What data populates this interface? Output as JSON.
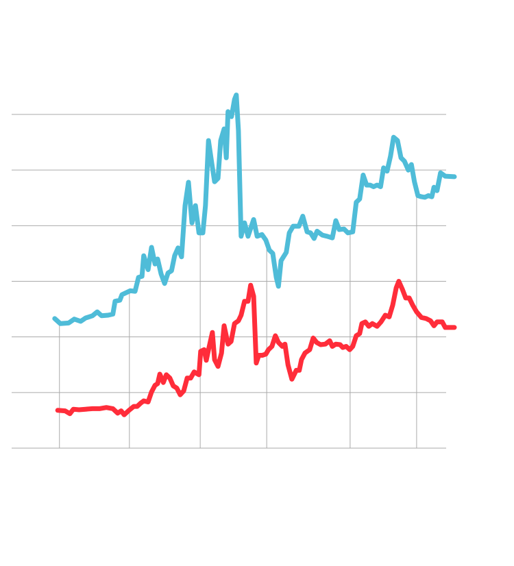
{
  "chart_data": {
    "type": "line",
    "title": "",
    "xlabel": "",
    "ylabel": "",
    "xlim": [
      0,
      100
    ],
    "ylim": [
      0,
      60
    ],
    "y_gridlines": [
      0,
      10,
      20,
      30,
      40,
      50,
      60
    ],
    "x_gridlines": [
      11.0,
      27.1,
      43.4,
      58.7,
      77.9,
      93.2
    ],
    "grid": true,
    "legend": "none",
    "colors": {
      "series_1": "#4fbcd8",
      "series_2": "#ff2d3a",
      "grid": "#aaaaaa"
    },
    "series": [
      {
        "x": [
          9.9,
          11.2,
          13.1,
          14.4,
          15.9,
          17.0,
          18.6,
          19.7,
          20.7,
          22.2,
          23.3,
          23.8,
          24.9,
          25.4,
          27.3,
          28.4,
          29.2,
          30.0,
          30.4,
          31.4,
          32.2,
          33.0,
          33.6,
          34.4,
          35.2,
          36.0,
          36.8,
          37.5,
          38.3,
          39.1,
          39.9,
          40.7,
          41.5,
          42.3,
          43.1,
          44.0,
          44.6,
          45.3,
          46.1,
          46.7,
          47.5,
          48.1,
          48.9,
          49.4,
          49.8,
          50.6,
          51.3,
          51.7,
          52.2,
          52.8,
          53.6,
          54.4,
          55.7,
          56.5,
          57.6,
          58.5,
          59.3,
          60.1,
          60.9,
          61.4,
          62.0,
          63.2,
          63.9,
          64.8,
          66.1,
          67.0,
          68.0,
          68.8,
          69.6,
          70.3,
          71.5,
          72.6,
          73.8,
          74.6,
          75.4,
          76.5,
          77.4,
          78.5,
          79.3,
          80.1,
          80.9,
          81.7,
          82.5,
          83.3,
          84.1,
          84.9,
          85.6,
          86.4,
          87.2,
          87.9,
          88.8,
          89.6,
          90.4,
          91.3,
          92.0,
          92.7,
          93.5,
          94.3,
          95.1,
          95.9,
          96.7,
          97.2,
          97.9,
          98.7,
          99.8,
          101.9
        ],
        "y": [
          23.3,
          22.4,
          22.5,
          23.2,
          22.8,
          23.4,
          23.8,
          24.5,
          23.8,
          23.9,
          24.1,
          26.4,
          26.6,
          27.6,
          28.3,
          28.2,
          30.7,
          30.9,
          34.6,
          32.1,
          36.1,
          33.1,
          34.0,
          31.3,
          29.6,
          31.5,
          31.9,
          34.6,
          36.0,
          34.4,
          43.6,
          47.8,
          40.5,
          43.6,
          38.7,
          38.7,
          43.6,
          55.3,
          51.0,
          47.9,
          48.5,
          55.3,
          57.4,
          52.2,
          60.5,
          59.6,
          62.7,
          63.5,
          57.1,
          38.1,
          40.5,
          38.1,
          41.1,
          38.1,
          38.4,
          37.4,
          35.6,
          35.0,
          30.7,
          29.1,
          33.7,
          35.2,
          38.7,
          39.9,
          39.9,
          41.7,
          38.9,
          38.7,
          37.7,
          39.0,
          38.3,
          38.1,
          37.8,
          40.9,
          39.3,
          39.4,
          38.7,
          38.9,
          44.2,
          44.8,
          49.1,
          47.3,
          47.3,
          47.0,
          47.3,
          47.0,
          50.4,
          49.8,
          52.5,
          55.9,
          55.3,
          52.2,
          51.6,
          50.0,
          51.0,
          47.9,
          45.4,
          45.2,
          45.1,
          45.4,
          45.2,
          46.9,
          46.3,
          49.5,
          48.9,
          48.8
        ]
      },
      {
        "x": [
          10.6,
          12.3,
          13.4,
          14.2,
          15.5,
          17.0,
          18.6,
          20.2,
          21.8,
          23.3,
          24.4,
          25.2,
          25.9,
          27.0,
          28.1,
          28.9,
          29.7,
          30.4,
          31.4,
          32.2,
          33.0,
          33.6,
          34.1,
          34.9,
          35.6,
          36.4,
          37.2,
          38.0,
          38.8,
          39.6,
          40.4,
          41.2,
          42.0,
          43.1,
          43.5,
          44.3,
          44.8,
          45.4,
          46.2,
          46.7,
          47.5,
          48.3,
          48.9,
          49.8,
          50.5,
          51.3,
          52.2,
          52.8,
          53.6,
          54.4,
          55.0,
          55.7,
          56.3,
          56.9,
          57.7,
          58.5,
          59.1,
          59.9,
          60.7,
          61.4,
          62.3,
          62.9,
          63.6,
          64.5,
          65.5,
          66.2,
          66.7,
          67.5,
          68.6,
          69.4,
          70.2,
          71.1,
          72.2,
          73.2,
          73.8,
          74.6,
          75.6,
          76.2,
          77.0,
          77.8,
          78.5,
          79.3,
          80.1,
          80.6,
          81.4,
          82.2,
          83.0,
          84.1,
          85.0,
          86.0,
          86.9,
          87.7,
          88.5,
          89.1,
          89.9,
          90.7,
          91.5,
          92.3,
          93.2,
          94.3,
          95.4,
          96.4,
          97.2,
          97.9,
          99.1,
          99.8,
          101.9
        ],
        "y": [
          6.8,
          6.7,
          6.2,
          7.0,
          6.9,
          7.0,
          7.1,
          7.1,
          7.3,
          7.1,
          6.3,
          6.7,
          6.0,
          6.8,
          7.5,
          7.5,
          8.1,
          8.5,
          8.3,
          10.1,
          11.3,
          11.6,
          13.3,
          11.8,
          13.2,
          12.6,
          11.2,
          10.8,
          9.6,
          10.3,
          12.6,
          12.6,
          13.7,
          13.2,
          17.4,
          17.7,
          15.8,
          18.0,
          20.8,
          15.9,
          14.7,
          17.1,
          22.0,
          18.7,
          19.2,
          22.4,
          22.9,
          23.9,
          26.4,
          26.4,
          29.3,
          27.3,
          15.3,
          16.7,
          16.7,
          16.9,
          17.7,
          18.3,
          20.2,
          19.0,
          18.3,
          18.7,
          15.0,
          12.4,
          14.0,
          14.0,
          15.9,
          17.1,
          17.7,
          19.8,
          19.0,
          18.6,
          18.7,
          19.3,
          18.3,
          18.7,
          18.6,
          18.1,
          18.3,
          17.7,
          18.3,
          20.2,
          20.6,
          22.4,
          22.7,
          21.9,
          22.4,
          21.9,
          22.7,
          23.9,
          23.6,
          25.7,
          28.8,
          30.0,
          28.6,
          27.0,
          27.0,
          25.7,
          24.5,
          23.5,
          23.3,
          22.9,
          22.0,
          22.7,
          22.7,
          21.7,
          21.7
        ]
      }
    ]
  }
}
